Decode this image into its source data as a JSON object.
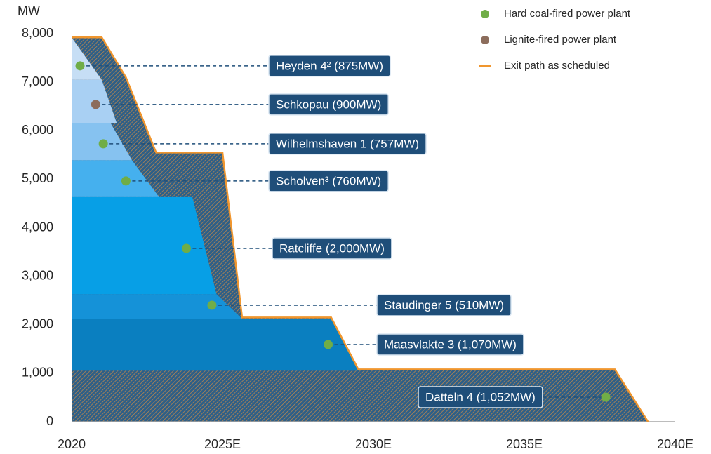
{
  "chart_data": {
    "type": "area",
    "y_label": "MW",
    "xlim": [
      2020,
      2040
    ],
    "xticks": [
      2020,
      {
        "value": 2025,
        "label": "2025E"
      },
      {
        "value": 2030,
        "label": "2030E"
      },
      {
        "value": 2035,
        "label": "2035E"
      },
      {
        "value": 2040,
        "label": "2040E"
      }
    ],
    "ylim": [
      0,
      8000
    ],
    "yticks": [
      0,
      {
        "value": 1000,
        "label": "1,000"
      },
      {
        "value": 2000,
        "label": "2,000"
      },
      {
        "value": 3000,
        "label": "3,000"
      },
      {
        "value": 4000,
        "label": "4,000"
      },
      {
        "value": 5000,
        "label": "5,000"
      },
      {
        "value": 6000,
        "label": "6,000"
      },
      {
        "value": 7000,
        "label": "7,000"
      },
      {
        "value": 8000,
        "label": "8,000"
      }
    ],
    "grid": false,
    "legend_position": "top-right",
    "markers": [
      {
        "name": "Hard coal-fired power plant",
        "color": "#70ad47"
      },
      {
        "name": "Lignite-fired power plant",
        "color": "#8c6d5c"
      }
    ],
    "series": [
      {
        "name": "Exit path as scheduled",
        "color": "#f0962e",
        "hatch": true,
        "x": [
          2020,
          2021,
          2021.8,
          2022.8,
          2025,
          2025.65,
          2028.6,
          2029.5,
          2038,
          2039.1
        ],
        "values": [
          7924,
          7924,
          7100,
          5550,
          5550,
          2150,
          2150,
          1080,
          1080,
          0
        ]
      }
    ],
    "plants": [
      {
        "name": "Datteln 4 (1,052MW)",
        "value": 1052,
        "color": "#2e5f87",
        "hatch": true,
        "exit_start": 2038,
        "exit_end": 2039.1,
        "dot_x": 2037.7,
        "dot_y": 506,
        "dot_color": "#70ad47"
      },
      {
        "name": "Maasvlakte 3 (1,070MW)",
        "value": 1070,
        "color": "#0a7fc0",
        "exit_start": 2028.6,
        "exit_end": 2029.5,
        "dot_x": 2028.5,
        "dot_y": 1592,
        "dot_color": "#70ad47"
      },
      {
        "name": "Staudinger 5 (510MW)",
        "value": 510,
        "color": "#1592d8",
        "exit_start": 2024.8,
        "exit_end": 2025.65,
        "dot_x": 2024.65,
        "dot_y": 2402,
        "dot_color": "#70ad47"
      },
      {
        "name": "Ratcliffe (2,000MW)",
        "value": 2000,
        "color": "#079fe6",
        "exit_start": 2024,
        "exit_end": 2024.8,
        "dot_x": 2023.8,
        "dot_y": 3574,
        "dot_color": "#70ad47"
      },
      {
        "name": "Scholven³ (760MW)",
        "value": 760,
        "color": "#45b0ee",
        "exit_start": 2022,
        "exit_end": 2022.9,
        "dot_x": 2021.8,
        "dot_y": 4964,
        "dot_color": "#70ad47"
      },
      {
        "name": "Wilhelmshaven 1 (757MW)",
        "value": 757,
        "color": "#86c2f0",
        "exit_start": 2021.3,
        "exit_end": 2022,
        "dot_x": 2021.05,
        "dot_y": 5731,
        "dot_color": "#70ad47"
      },
      {
        "name": "Schkopau (900MW)",
        "value": 900,
        "color": "#a9d0f3",
        "exit_start": 2021,
        "exit_end": 2021.5,
        "dot_x": 2020.8,
        "dot_y": 6541,
        "dot_color": "#8c6d5c"
      },
      {
        "name": "Heyden 4² (875MW)",
        "value": 875,
        "color": "#c6def5",
        "exit_start": 2020,
        "exit_end": 2021,
        "dot_x": 2020.28,
        "dot_y": 7337,
        "dot_color": "#70ad47"
      }
    ]
  }
}
